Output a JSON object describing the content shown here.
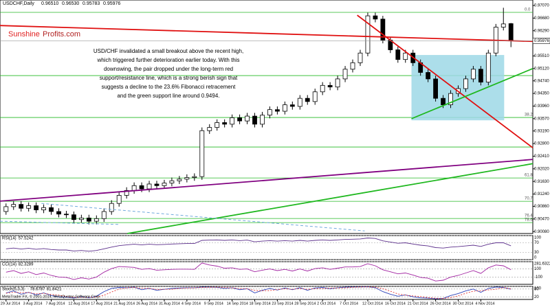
{
  "chart_data": {
    "type": "candlestick",
    "title": "USDCHF,Daily",
    "last_labels": [
      "0.96510",
      "0.96530",
      "0.95783",
      "0.95976"
    ],
    "brand": [
      "Sunshine",
      "Profits.com"
    ],
    "note": [
      "USD/CHF invalidated a small breakout above the recent high,",
      "which triggered further deterioration earlier today. With this",
      "downswing, the pair dropped under the long-term red",
      "support/resistance line, which is a strong berish sign that",
      "suggests a decline to the 23.6% Fibonacci retracement",
      "and the green support line around 0.9494."
    ],
    "categories": [
      "29 Jul 2014",
      null,
      null,
      "3 Aug 2014",
      null,
      null,
      "7 Aug 2014",
      null,
      null,
      "12 Aug 2014",
      null,
      null,
      "17 Aug 2014",
      null,
      null,
      "21 Aug 2014",
      null,
      null,
      "26 Aug 2014",
      null,
      null,
      "31 Aug 2014",
      null,
      null,
      "4 Sep 2014",
      null,
      null,
      "9 Sep 2014",
      null,
      null,
      "14 Sep 2014",
      null,
      null,
      "18 Sep 2014",
      null,
      null,
      "23 Sep 2014",
      null,
      null,
      "28 Sep 2014",
      null,
      null,
      "2 Oct 2014",
      null,
      null,
      "7 Oct 2014",
      null,
      null,
      "12 Oct 2014",
      null,
      null,
      "16 Oct 2014",
      null,
      null,
      "21 Oct 2014",
      null,
      null,
      "26 Oct 2014",
      null,
      null,
      "30 Oct 2014",
      null,
      null,
      "4 Nov 2014",
      null,
      null,
      null,
      null
    ],
    "open": [
      0.907,
      0.9085,
      0.9092,
      0.908,
      0.9088,
      0.9075,
      0.9082,
      0.907,
      0.9062,
      0.906,
      0.9045,
      0.905,
      0.904,
      0.9048,
      0.907,
      0.9095,
      0.912,
      0.9135,
      0.915,
      0.914,
      0.9155,
      0.915,
      0.9158,
      0.9165,
      0.917,
      0.9175,
      0.9178,
      0.932,
      0.933,
      0.9345,
      0.934,
      0.936,
      0.935,
      0.9365,
      0.934,
      0.9368,
      0.9385,
      0.938,
      0.94,
      0.9395,
      0.942,
      0.941,
      0.944,
      0.946,
      0.9455,
      0.948,
      0.951,
      0.953,
      0.956,
      0.9675,
      0.9665,
      0.96,
      0.957,
      0.954,
      0.956,
      0.953,
      0.95,
      0.948,
      0.942,
      0.94,
      0.9435,
      0.945,
      0.948,
      0.951,
      0.947,
      0.956,
      0.964,
      0.9651
    ],
    "high": [
      0.9095,
      0.9102,
      0.9102,
      0.9098,
      0.9098,
      0.9092,
      0.9092,
      0.908,
      0.9072,
      0.907,
      0.906,
      0.906,
      0.9058,
      0.908,
      0.9105,
      0.913,
      0.9145,
      0.916,
      0.916,
      0.9165,
      0.9165,
      0.9168,
      0.9175,
      0.918,
      0.9185,
      0.9188,
      0.933,
      0.934,
      0.9355,
      0.9355,
      0.937,
      0.937,
      0.9375,
      0.9375,
      0.9378,
      0.9395,
      0.9395,
      0.941,
      0.941,
      0.943,
      0.943,
      0.945,
      0.947,
      0.947,
      0.949,
      0.952,
      0.954,
      0.957,
      0.9685,
      0.9685,
      0.9675,
      0.961,
      0.958,
      0.957,
      0.957,
      0.954,
      0.951,
      0.949,
      0.943,
      0.9445,
      0.946,
      0.949,
      0.952,
      0.952,
      0.957,
      0.965,
      0.97,
      0.9653
    ],
    "low": [
      0.906,
      0.9075,
      0.907,
      0.907,
      0.9065,
      0.9065,
      0.906,
      0.9052,
      0.905,
      0.9035,
      0.9035,
      0.903,
      0.903,
      0.9038,
      0.906,
      0.9085,
      0.911,
      0.9125,
      0.913,
      0.913,
      0.914,
      0.914,
      0.9148,
      0.9155,
      0.916,
      0.9165,
      0.9168,
      0.931,
      0.932,
      0.933,
      0.933,
      0.934,
      0.934,
      0.933,
      0.933,
      0.9358,
      0.937,
      0.937,
      0.9385,
      0.9385,
      0.94,
      0.94,
      0.943,
      0.9445,
      0.9445,
      0.947,
      0.95,
      0.952,
      0.955,
      0.9655,
      0.959,
      0.956,
      0.953,
      0.953,
      0.952,
      0.949,
      0.947,
      0.941,
      0.939,
      0.939,
      0.9425,
      0.944,
      0.947,
      0.946,
      0.946,
      0.955,
      0.963,
      0.95783
    ],
    "close": [
      0.9085,
      0.9092,
      0.908,
      0.9088,
      0.9075,
      0.9082,
      0.907,
      0.9062,
      0.906,
      0.9045,
      0.905,
      0.904,
      0.9048,
      0.907,
      0.9095,
      0.912,
      0.9135,
      0.915,
      0.914,
      0.9155,
      0.915,
      0.9158,
      0.9165,
      0.917,
      0.9175,
      0.9178,
      0.932,
      0.933,
      0.9345,
      0.934,
      0.936,
      0.935,
      0.9365,
      0.934,
      0.9368,
      0.9385,
      0.938,
      0.94,
      0.9395,
      0.942,
      0.941,
      0.944,
      0.946,
      0.9455,
      0.948,
      0.951,
      0.953,
      0.956,
      0.9675,
      0.9665,
      0.96,
      0.957,
      0.954,
      0.956,
      0.953,
      0.95,
      0.948,
      0.942,
      0.94,
      0.9435,
      0.945,
      0.948,
      0.951,
      0.947,
      0.956,
      0.964,
      0.965,
      0.95976
    ],
    "xlim": [
      -0.8,
      69.9
    ],
    "ylim": [
      0.9002,
      0.9724
    ],
    "yticks": [
      {
        "value": 0.9707,
        "label": "0.97070"
      },
      {
        "value": 0.9668,
        "label": "0.96680"
      },
      {
        "value": 0.9629,
        "label": "0.96290"
      },
      {
        "value": 0.9551,
        "label": "0.95510"
      },
      {
        "value": 0.9512,
        "label": "0.95120"
      },
      {
        "value": 0.9474,
        "label": "0.94740"
      },
      {
        "value": 0.9435,
        "label": "0.94350"
      },
      {
        "value": 0.9396,
        "label": "0.93960"
      },
      {
        "value": 0.9357,
        "label": "0.93570"
      },
      {
        "value": 0.9319,
        "label": "0.93190"
      },
      {
        "value": 0.928,
        "label": "0.92800"
      },
      {
        "value": 0.9241,
        "label": "0.92410"
      },
      {
        "value": 0.9202,
        "label": "0.92020"
      },
      {
        "value": 0.9163,
        "label": "0.91630"
      },
      {
        "value": 0.9124,
        "label": "0.91240"
      },
      {
        "value": 0.9086,
        "label": "0.90860"
      },
      {
        "value": 0.9047,
        "label": "0.90470"
      },
      {
        "value": 0.9008,
        "label": "0.90080"
      }
    ],
    "levels_color": "#22b822",
    "levels": [
      {
        "value": 0.96858,
        "label": "0.0"
      },
      0.94903,
      {
        "value": 0.93607,
        "label": "38.2"
      },
      0.92694,
      {
        "value": 0.91737,
        "label": "61.8"
      },
      {
        "value": 0.91015,
        "label": "70.7"
      },
      {
        "value": 0.90484,
        "label": "76.4"
      },
      {
        "value": 0.90357,
        "label": "78.6"
      }
    ],
    "lines": [
      {
        "color": "#e01010",
        "start": [
          -0.8,
          0.9645
        ],
        "end": [
          69.9,
          0.9596
        ]
      },
      {
        "color": "#e01010",
        "start": [
          46.6,
          0.9677
        ],
        "end": [
          69.9,
          0.9267
        ]
      },
      {
        "color": "#800080",
        "start": [
          -0.8,
          0.9102
        ],
        "end": [
          69.9,
          0.9231
        ]
      },
      {
        "color": "#1fb81f",
        "start": [
          16.1,
          0.9002
        ],
        "end": [
          69.9,
          0.9218
        ]
      },
      {
        "color": "#1fb81f",
        "start": [
          53.8,
          0.9357
        ],
        "end": [
          69.9,
          0.9512
        ]
      },
      {
        "color": "#6fa8dc",
        "dashed": true,
        "start": [
          4.7,
          0.9095
        ],
        "end": [
          47.6,
          0.901
        ]
      },
      {
        "color": "#6fa8dc",
        "dashed": true,
        "start": [
          -0.8,
          0.904
        ],
        "end": [
          15,
          0.903
        ]
      }
    ],
    "box": {
      "color": "#9ed8e6",
      "start": [
        53.8,
        0.9554
      ],
      "end": [
        66.1,
        0.9352
      ]
    },
    "rsi": {
      "label": "RSI(14)",
      "color": "#5a2d8a",
      "ylim": [
        0,
        100
      ],
      "ticks": [
        100,
        70,
        30,
        0
      ],
      "values": [
        45,
        48,
        44,
        47,
        43,
        46,
        42,
        40,
        40,
        36,
        38,
        35,
        38,
        45,
        52,
        58,
        61,
        64,
        61,
        64,
        62,
        63,
        65,
        66,
        67,
        67,
        80,
        81,
        82,
        80,
        82,
        79,
        81,
        74,
        77,
        79,
        77,
        79,
        77,
        80,
        77,
        80,
        82,
        80,
        82,
        84,
        85,
        86,
        90,
        88,
        78,
        73,
        68,
        70,
        65,
        60,
        57,
        50,
        48,
        52,
        54,
        57,
        60,
        55,
        64,
        70,
        70,
        57.5242
      ]
    },
    "cci": {
      "label": "CCI(14)",
      "color": "#a020a0",
      "ylim": [
        -281.6322,
        281.6322
      ],
      "ticks": [
        281.6322,
        100,
        -100
      ],
      "values": [
        20,
        60,
        -10,
        30,
        -40,
        0,
        -60,
        -100,
        -110,
        -160,
        -120,
        -150,
        -100,
        20,
        110,
        160,
        150,
        140,
        90,
        110,
        70,
        80,
        90,
        95,
        95,
        90,
        250,
        200,
        170,
        120,
        130,
        90,
        100,
        30,
        70,
        100,
        60,
        90,
        50,
        100,
        50,
        110,
        130,
        90,
        120,
        150,
        150,
        160,
        230,
        180,
        80,
        30,
        -20,
        0,
        -50,
        -110,
        -130,
        -200,
        -180,
        -100,
        -60,
        0,
        60,
        -10,
        130,
        200,
        180,
        82.3289
      ]
    },
    "stoch": {
      "label": "Stoch(5,3,3)",
      "ylim": [
        0,
        100
      ],
      "ticks": [
        100,
        80,
        20
      ],
      "k_color": "#2a3fb8",
      "d_color": "#e03030",
      "k": [
        50,
        65,
        40,
        55,
        35,
        50,
        30,
        20,
        18,
        10,
        22,
        12,
        25,
        60,
        85,
        92,
        90,
        94,
        75,
        85,
        70,
        78,
        85,
        88,
        90,
        90,
        95,
        94,
        93,
        85,
        90,
        75,
        82,
        50,
        70,
        85,
        72,
        88,
        75,
        90,
        70,
        88,
        92,
        82,
        90,
        94,
        95,
        96,
        97,
        90,
        60,
        40,
        25,
        35,
        20,
        12,
        10,
        5,
        8,
        30,
        45,
        65,
        80,
        55,
        85,
        95,
        92,
        78.6787
      ],
      "d": [
        48,
        55,
        52,
        53,
        43,
        47,
        38,
        33,
        23,
        16,
        17,
        15,
        20,
        32,
        57,
        79,
        89,
        92,
        86,
        85,
        77,
        78,
        78,
        84,
        88,
        89,
        92,
        93,
        94,
        91,
        89,
        83,
        82,
        69,
        67,
        68,
        76,
        82,
        78,
        84,
        78,
        83,
        83,
        87,
        88,
        89,
        93,
        95,
        96,
        94,
        82,
        63,
        42,
        33,
        27,
        22,
        14,
        9,
        8,
        14,
        28,
        47,
        63,
        67,
        73,
        78,
        91,
        81.8421
      ]
    },
    "footer": "MetaTrader FX, © 2001-2014, MetaQuotes Software Corp."
  }
}
